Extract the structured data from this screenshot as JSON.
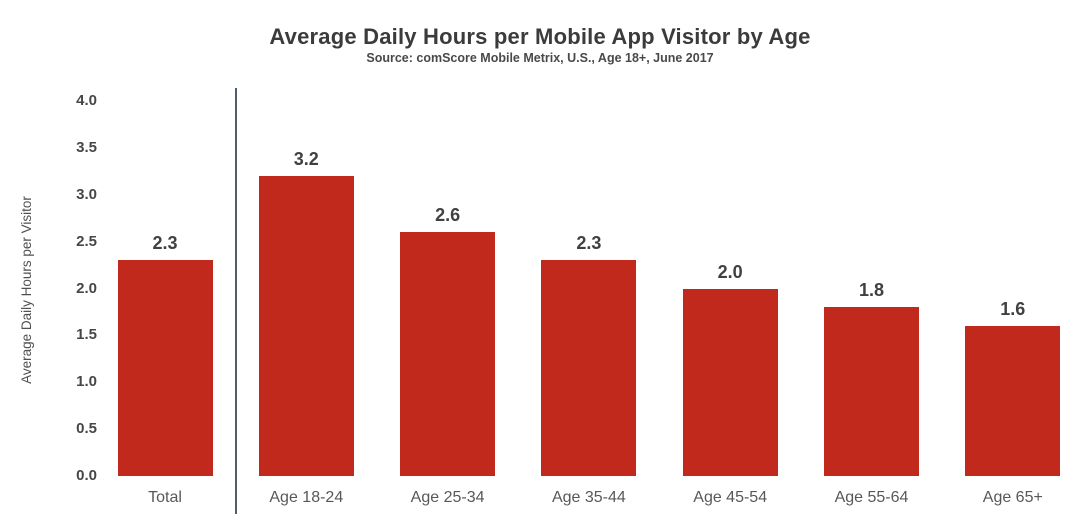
{
  "header": {
    "title": "Average Daily Hours per Mobile App Visitor by Age",
    "subtitle": "Source: comScore Mobile Metrix, U.S., Age 18+, June 2017"
  },
  "chart_data": {
    "type": "bar",
    "title": "Average Daily Hours per Mobile App Visitor by Age",
    "subtitle": "Source: comScore Mobile Metrix, U.S., Age 18+, June 2017",
    "categories": [
      "Total",
      "Age 18-24",
      "Age 25-34",
      "Age 35-44",
      "Age 45-54",
      "Age 55-64",
      "Age 65+"
    ],
    "values": [
      2.3,
      3.2,
      2.6,
      2.3,
      2.0,
      1.8,
      1.6
    ],
    "value_labels": [
      "2.3",
      "3.2",
      "2.6",
      "2.3",
      "2.0",
      "1.8",
      "1.6"
    ],
    "xlabel": "",
    "ylabel": "Average Daily Hours per Visitor",
    "ylim": [
      0.0,
      4.0
    ],
    "ytick_step": 0.5,
    "yticks": [
      "0.0",
      "0.5",
      "1.0",
      "1.5",
      "2.0",
      "2.5",
      "3.0",
      "3.5",
      "4.0"
    ],
    "grid": false,
    "legend": false,
    "separator_after_category": "Total"
  },
  "colors": {
    "bar": "#c2291d",
    "title_text": "#3b3b3d",
    "subtitle_text": "#48494b",
    "tick_text": "#454648",
    "value_label_text": "#3f4042",
    "category_text": "#57585b",
    "ylabel_text": "#4f5052",
    "separator": "#515d68",
    "background": "#ffffff"
  }
}
